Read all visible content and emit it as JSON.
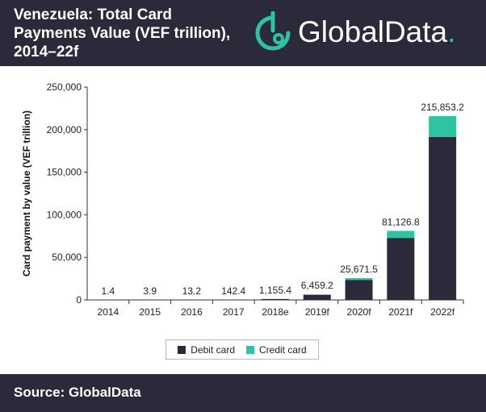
{
  "header": {
    "title_lines": [
      "Venezuela: Total Card",
      "Payments Value (VEF trillion),",
      "2014–22f"
    ],
    "logo_text": "GlobalData",
    "logo_dot": "."
  },
  "footer": {
    "source": "Source: GlobalData"
  },
  "colors": {
    "header_bg": "#2a2a3a",
    "debit": "#2a2a3a",
    "credit": "#2ec4a0",
    "accent": "#2ec4a0"
  },
  "chart_data": {
    "type": "bar",
    "stacked": true,
    "categories": [
      "2014",
      "2015",
      "2016",
      "2017",
      "2018e",
      "2019f",
      "2020f",
      "2021f",
      "2022f"
    ],
    "series": [
      {
        "name": "Debit card",
        "values": [
          1.3,
          3.6,
          12.3,
          132.4,
          1074.5,
          6008.8,
          23500,
          72800,
          191500
        ]
      },
      {
        "name": "Credit card",
        "values": [
          0.1,
          0.3,
          0.9,
          10.0,
          80.9,
          450.4,
          2171.5,
          8326.8,
          24353.2
        ]
      }
    ],
    "totals": [
      "1.4",
      "3.9",
      "13.2",
      "142.4",
      "1,155.4",
      "6,459.2",
      "25,671.5",
      "81,126.8",
      "215,853.2"
    ],
    "ylabel": "Card payment by value (VEF trillion)",
    "ylim": [
      0,
      250000
    ],
    "yticks": [
      0,
      50000,
      100000,
      150000,
      200000,
      250000
    ],
    "ytick_labels": [
      "0",
      "50,000",
      "100,000",
      "150,000",
      "200,000",
      "250,000"
    ],
    "grid": false,
    "legend_position": "bottom"
  }
}
